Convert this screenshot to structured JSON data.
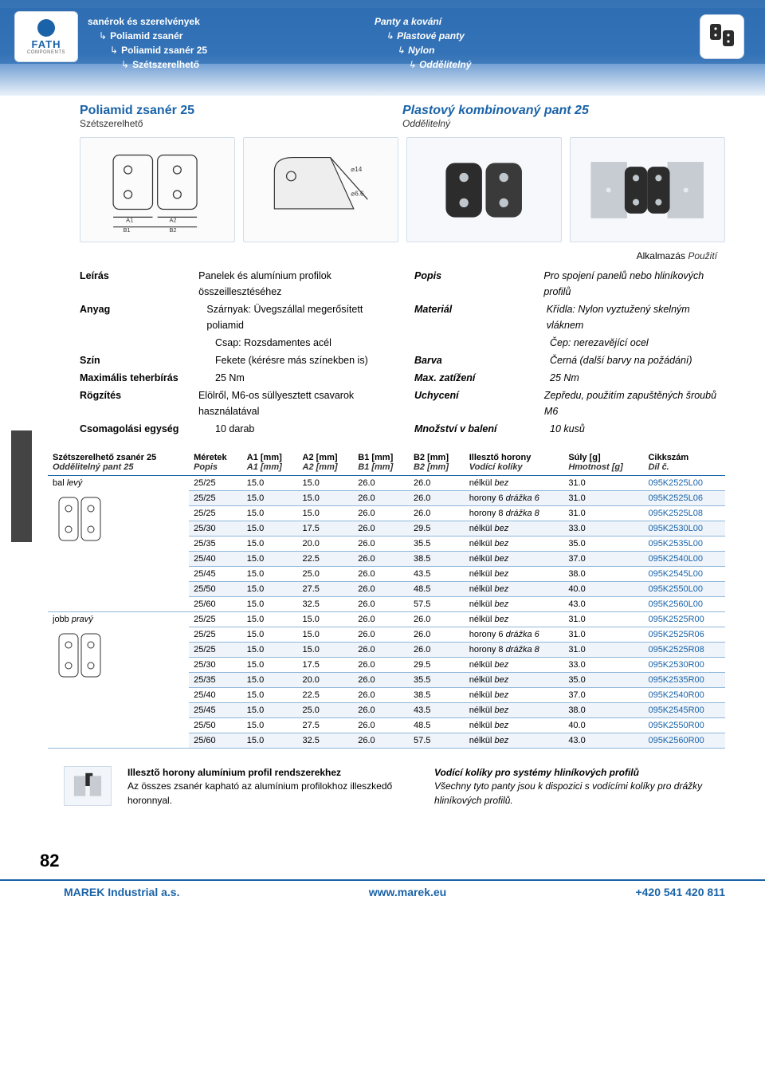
{
  "brand": {
    "name": "FATH",
    "sub": "COMPONENTS"
  },
  "colors": {
    "accent": "#1a63a8",
    "ribbon_top": "#2b6bb0",
    "ribbon_mid": "#3f7ec4",
    "row_shade": "#eef4fa",
    "row_border": "#8fb7db",
    "hinge_dark": "#2c2c2c",
    "profile_silver": "#c7ccd2"
  },
  "crumbs_left": [
    {
      "text": "sanérok és szerelvények",
      "indent": 0,
      "bold": true
    },
    {
      "text": "Poliamid zsanér",
      "indent": 1,
      "bold": true
    },
    {
      "text": "Poliamid zsanér 25",
      "indent": 2,
      "bold": true
    },
    {
      "text": "Szétszerelhető",
      "indent": 3,
      "bold": true
    }
  ],
  "crumbs_right": [
    {
      "text": "Panty a kování",
      "indent": 0,
      "bold": true
    },
    {
      "text": "Plastové panty",
      "indent": 1,
      "bold": true
    },
    {
      "text": "Nylon",
      "indent": 2,
      "bold": true
    },
    {
      "text": "Oddělitelný",
      "indent": 3,
      "bold": true
    }
  ],
  "title_left": {
    "main": "Poliamid zsanér 25",
    "sub": "Szétszerelhető"
  },
  "title_right": {
    "main": "Plastový kombinovaný pant 25",
    "sub": "Oddělitelný"
  },
  "application": {
    "hu": "Alkalmazás",
    "cz": "Použití"
  },
  "specs_left": [
    {
      "label": "Leírás",
      "value": "Panelek és alumínium profilok összeillesztéséhez"
    },
    {
      "label": "Anyag",
      "value": "Szárnyak: Üvegszállal megerősített poliamid"
    },
    {
      "label": "",
      "value": "Csap: Rozsdamentes acél"
    },
    {
      "label": "Szín",
      "value": "Fekete (kérésre más színekben is)"
    },
    {
      "label": "Maximális teherbírás",
      "value": "25 Nm"
    },
    {
      "label": "Rögzítés",
      "value": "Elölről, M6-os süllyesztett csavarok használatával"
    },
    {
      "label": "Csomagolási egység",
      "value": "10 darab"
    }
  ],
  "specs_right": [
    {
      "label": "Popis",
      "value": "Pro spojení panelů nebo hliníkových profilů"
    },
    {
      "label": "Materiál",
      "value": "Křídla: Nylon vyztužený skelným vláknem"
    },
    {
      "label": "",
      "value": "Čep: nerezavějící ocel"
    },
    {
      "label": "Barva",
      "value": "Černá (další barvy na požádání)"
    },
    {
      "label": "Max. zatížení",
      "value": "25 Nm"
    },
    {
      "label": "Uchycení",
      "value": "Zepředu, použitím zapuštěných šroubů M6"
    },
    {
      "label": "Množství v balení",
      "value": "10 kusů"
    }
  ],
  "table": {
    "headers": [
      {
        "hu": "Szétszerelhető zsanér 25",
        "cz": "Oddělitelný pant 25"
      },
      {
        "hu": "Méretek",
        "cz": "Popis"
      },
      {
        "hu": "A1 [mm]",
        "cz": "A1 [mm]"
      },
      {
        "hu": "A2 [mm]",
        "cz": "A2 [mm]"
      },
      {
        "hu": "B1 [mm]",
        "cz": "B1 [mm]"
      },
      {
        "hu": "B2 [mm]",
        "cz": "B2 [mm]"
      },
      {
        "hu": "Illesztő horony",
        "cz": "Vodící kolíky"
      },
      {
        "hu": "Súly [g]",
        "cz": "Hmotnost [g]"
      },
      {
        "hu": "Cikkszám",
        "cz": "Díl č."
      }
    ],
    "groups": [
      {
        "lead_hu": "bal",
        "lead_cz": "levý",
        "rows": [
          {
            "m": "25/25",
            "a1": "15.0",
            "a2": "15.0",
            "b1": "26.0",
            "b2": "26.0",
            "fit_hu": "nélkül",
            "fit_cz": "bez",
            "w": "31.0",
            "code": "095K2525L00",
            "shade": false
          },
          {
            "m": "25/25",
            "a1": "15.0",
            "a2": "15.0",
            "b1": "26.0",
            "b2": "26.0",
            "fit_hu": "horony 6",
            "fit_cz": "drážka 6",
            "w": "31.0",
            "code": "095K2525L06",
            "shade": true
          },
          {
            "m": "25/25",
            "a1": "15.0",
            "a2": "15.0",
            "b1": "26.0",
            "b2": "26.0",
            "fit_hu": "horony 8",
            "fit_cz": "drážka 8",
            "w": "31.0",
            "code": "095K2525L08",
            "shade": false
          },
          {
            "m": "25/30",
            "a1": "15.0",
            "a2": "17.5",
            "b1": "26.0",
            "b2": "29.5",
            "fit_hu": "nélkül",
            "fit_cz": "bez",
            "w": "33.0",
            "code": "095K2530L00",
            "shade": true
          },
          {
            "m": "25/35",
            "a1": "15.0",
            "a2": "20.0",
            "b1": "26.0",
            "b2": "35.5",
            "fit_hu": "nélkül",
            "fit_cz": "bez",
            "w": "35.0",
            "code": "095K2535L00",
            "shade": false
          },
          {
            "m": "25/40",
            "a1": "15.0",
            "a2": "22.5",
            "b1": "26.0",
            "b2": "38.5",
            "fit_hu": "nélkül",
            "fit_cz": "bez",
            "w": "37.0",
            "code": "095K2540L00",
            "shade": true
          },
          {
            "m": "25/45",
            "a1": "15.0",
            "a2": "25.0",
            "b1": "26.0",
            "b2": "43.5",
            "fit_hu": "nélkül",
            "fit_cz": "bez",
            "w": "38.0",
            "code": "095K2545L00",
            "shade": false
          },
          {
            "m": "25/50",
            "a1": "15.0",
            "a2": "27.5",
            "b1": "26.0",
            "b2": "48.5",
            "fit_hu": "nélkül",
            "fit_cz": "bez",
            "w": "40.0",
            "code": "095K2550L00",
            "shade": true
          },
          {
            "m": "25/60",
            "a1": "15.0",
            "a2": "32.5",
            "b1": "26.0",
            "b2": "57.5",
            "fit_hu": "nélkül",
            "fit_cz": "bez",
            "w": "43.0",
            "code": "095K2560L00",
            "shade": false
          }
        ]
      },
      {
        "lead_hu": "jobb",
        "lead_cz": "pravý",
        "rows": [
          {
            "m": "25/25",
            "a1": "15.0",
            "a2": "15.0",
            "b1": "26.0",
            "b2": "26.0",
            "fit_hu": "nélkül",
            "fit_cz": "bez",
            "w": "31.0",
            "code": "095K2525R00",
            "shade": false
          },
          {
            "m": "25/25",
            "a1": "15.0",
            "a2": "15.0",
            "b1": "26.0",
            "b2": "26.0",
            "fit_hu": "horony 6",
            "fit_cz": "drážka 6",
            "w": "31.0",
            "code": "095K2525R06",
            "shade": false
          },
          {
            "m": "25/25",
            "a1": "15.0",
            "a2": "15.0",
            "b1": "26.0",
            "b2": "26.0",
            "fit_hu": "horony 8",
            "fit_cz": "drážka 8",
            "w": "31.0",
            "code": "095K2525R08",
            "shade": true
          },
          {
            "m": "25/30",
            "a1": "15.0",
            "a2": "17.5",
            "b1": "26.0",
            "b2": "29.5",
            "fit_hu": "nélkül",
            "fit_cz": "bez",
            "w": "33.0",
            "code": "095K2530R00",
            "shade": false
          },
          {
            "m": "25/35",
            "a1": "15.0",
            "a2": "20.0",
            "b1": "26.0",
            "b2": "35.5",
            "fit_hu": "nélkül",
            "fit_cz": "bez",
            "w": "35.0",
            "code": "095K2535R00",
            "shade": true
          },
          {
            "m": "25/40",
            "a1": "15.0",
            "a2": "22.5",
            "b1": "26.0",
            "b2": "38.5",
            "fit_hu": "nélkül",
            "fit_cz": "bez",
            "w": "37.0",
            "code": "095K2540R00",
            "shade": false
          },
          {
            "m": "25/45",
            "a1": "15.0",
            "a2": "25.0",
            "b1": "26.0",
            "b2": "43.5",
            "fit_hu": "nélkül",
            "fit_cz": "bez",
            "w": "38.0",
            "code": "095K2545R00",
            "shade": true
          },
          {
            "m": "25/50",
            "a1": "15.0",
            "a2": "27.5",
            "b1": "26.0",
            "b2": "48.5",
            "fit_hu": "nélkül",
            "fit_cz": "bez",
            "w": "40.0",
            "code": "095K2550R00",
            "shade": false
          },
          {
            "m": "25/60",
            "a1": "15.0",
            "a2": "32.5",
            "b1": "26.0",
            "b2": "57.5",
            "fit_hu": "nélkül",
            "fit_cz": "bez",
            "w": "43.0",
            "code": "095K2560R00",
            "shade": true
          }
        ]
      }
    ]
  },
  "note_left": {
    "head": "Illesztõ horony alumínium profil rendszerekhez",
    "body": "Az összes zsanér kapható az alumínium profilokhoz illeszkedő horonnyal."
  },
  "note_right": {
    "head": "Vodící kolíky pro systémy hliníkových profilů",
    "body": "Všechny tyto panty jsou k dispozici s vodícími kolíky pro drážky hliníkových profilů."
  },
  "page_number": "82",
  "footer": {
    "left": "MAREK Industrial a.s.",
    "mid": "www.marek.eu",
    "right": "+420 541 420 811"
  }
}
